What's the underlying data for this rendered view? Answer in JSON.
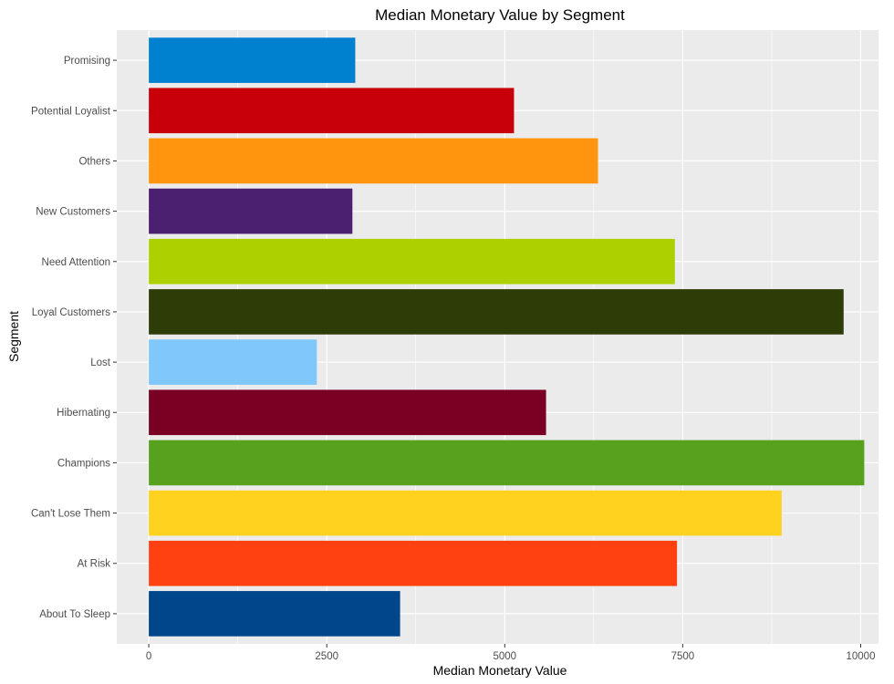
{
  "chart_data": {
    "type": "bar",
    "orientation": "horizontal",
    "title": "Median Monetary Value by Segment",
    "xlabel": "Median Monetary Value",
    "ylabel": "Segment",
    "xlim": [
      -450,
      10250
    ],
    "x_ticks": [
      0,
      2500,
      5000,
      7500,
      10000
    ],
    "x_tick_labels": [
      "0",
      "2500",
      "5000",
      "7500",
      "10000"
    ],
    "grid": true,
    "legend": "none",
    "categories": [
      "About To Sleep",
      "At Risk",
      "Can't Lose Them",
      "Champions",
      "Hibernating",
      "Lost",
      "Loyal Customers",
      "Need Attention",
      "New Customers",
      "Others",
      "Potential Loyalist",
      "Promising"
    ],
    "values": [
      3530,
      7420,
      8890,
      10050,
      5580,
      2360,
      9760,
      7390,
      2860,
      6310,
      5130,
      2900
    ],
    "colors": [
      "#00468b",
      "#ff4011",
      "#ffd21f",
      "#57a11f",
      "#7a0023",
      "#80c8fc",
      "#2e3c07",
      "#add100",
      "#4b2070",
      "#ff950f",
      "#c8000a",
      "#0081d0"
    ]
  }
}
